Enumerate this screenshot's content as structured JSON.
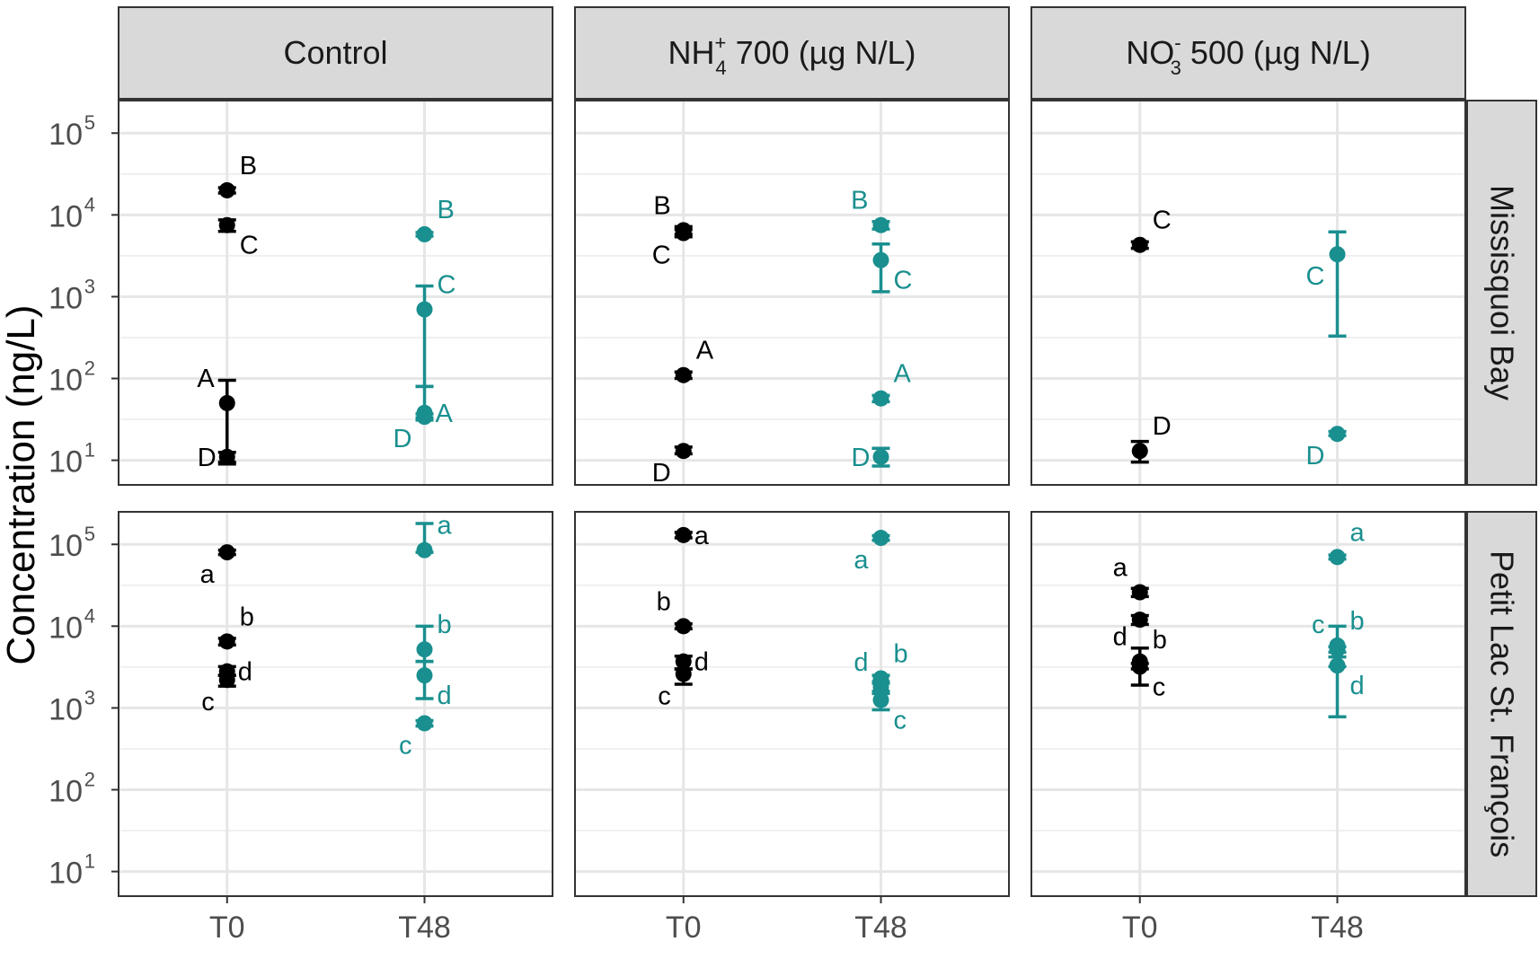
{
  "chart_data": {
    "type": "scatter",
    "title": "",
    "ylabel": "Concentration (ng/L)",
    "xlabel": "",
    "y_scale": "log10",
    "ylim": [
      5,
      250000
    ],
    "y_ticks": [
      {
        "value": 10,
        "base": "10",
        "exp": "1"
      },
      {
        "value": 100,
        "base": "10",
        "exp": "2"
      },
      {
        "value": 1000,
        "base": "10",
        "exp": "3"
      },
      {
        "value": 10000,
        "base": "10",
        "exp": "4"
      },
      {
        "value": 100000,
        "base": "10",
        "exp": "5"
      }
    ],
    "x_categories": [
      "T0",
      "T48"
    ],
    "colors": {
      "T0": "#000000",
      "T48": "#1a8f8f"
    },
    "columns": [
      {
        "id": "control",
        "label": "Control"
      },
      {
        "id": "nh4",
        "label_main": "NH",
        "label_sub": "4",
        "label_sup": "+",
        "label_rest": " 700 (µg N/L)"
      },
      {
        "id": "no3",
        "label_main": "NO",
        "label_sub": "3",
        "label_sup": "-",
        "label_rest": " 500 (µg N/L)"
      }
    ],
    "rows": [
      {
        "id": "missisquoi",
        "label": "Missisquoi Bay"
      },
      {
        "id": "petit",
        "label": "Petit Lac St. François"
      }
    ],
    "panels": [
      {
        "row": "missisquoi",
        "col": "control",
        "points": [
          {
            "x": "T0",
            "label": "B",
            "value": 20000,
            "lo": 18500,
            "hi": 21500,
            "label_side": "right-up"
          },
          {
            "x": "T0",
            "label": "C",
            "value": 7500,
            "lo": 6300,
            "hi": 8700,
            "label_side": "right-down"
          },
          {
            "x": "T0",
            "label": "A",
            "value": 50,
            "lo": 9,
            "hi": 95,
            "label_side": "left-up"
          },
          {
            "x": "T0",
            "label": "D",
            "value": 11,
            "lo": 9.5,
            "hi": 12.5,
            "label_side": "left"
          },
          {
            "x": "T48",
            "label": "B",
            "value": 5800,
            "lo": 5500,
            "hi": 6100,
            "label_side": "right-up"
          },
          {
            "x": "T48",
            "label": "C",
            "value": 700,
            "lo": 80,
            "hi": 1350,
            "label_side": "right-up"
          },
          {
            "x": "T48",
            "label": "A",
            "value": 38,
            "lo": 33,
            "hi": 80,
            "label_side": "right"
          },
          {
            "x": "T48",
            "label": "D",
            "value": 34,
            "lo": 31,
            "hi": 37,
            "label_side": "left-down"
          }
        ]
      },
      {
        "row": "missisquoi",
        "col": "nh4",
        "points": [
          {
            "x": "T0",
            "label": "B",
            "value": 6500,
            "lo": 5800,
            "hi": 7200,
            "label_side": "left-up"
          },
          {
            "x": "T0",
            "label": "C",
            "value": 6000,
            "lo": 5400,
            "hi": 6600,
            "label_side": "left-down"
          },
          {
            "x": "T0",
            "label": "A",
            "value": 110,
            "lo": 100,
            "hi": 120,
            "label_side": "right-up"
          },
          {
            "x": "T0",
            "label": "D",
            "value": 13,
            "lo": 12,
            "hi": 14.5,
            "label_side": "left-down"
          },
          {
            "x": "T48",
            "label": "B",
            "value": 7500,
            "lo": 6700,
            "hi": 8300,
            "label_side": "left-up"
          },
          {
            "x": "T48",
            "label": "C",
            "value": 2800,
            "lo": 1150,
            "hi": 4400,
            "label_side": "right-down"
          },
          {
            "x": "T48",
            "label": "A",
            "value": 57,
            "lo": 52,
            "hi": 62,
            "label_side": "right-up"
          },
          {
            "x": "T48",
            "label": "D",
            "value": 11,
            "lo": 8.5,
            "hi": 14,
            "label_side": "left"
          }
        ]
      },
      {
        "row": "missisquoi",
        "col": "no3",
        "points": [
          {
            "x": "T0",
            "label": "C",
            "value": 4300,
            "lo": 3900,
            "hi": 4700,
            "label_side": "right-up"
          },
          {
            "x": "T0",
            "label": "D",
            "value": 13,
            "lo": 9.5,
            "hi": 17,
            "label_side": "right-up"
          },
          {
            "x": "T48",
            "label": "C",
            "value": 3300,
            "lo": 330,
            "hi": 6200,
            "label_side": "left-down"
          },
          {
            "x": "T48",
            "label": "D",
            "value": 21,
            "lo": 20,
            "hi": 22.5,
            "label_side": "left-down"
          }
        ]
      },
      {
        "row": "petit",
        "col": "control",
        "points": [
          {
            "x": "T0",
            "label": "a",
            "value": 80000,
            "lo": 75000,
            "hi": 85000,
            "label_side": "left-down"
          },
          {
            "x": "T0",
            "label": "b",
            "value": 6500,
            "lo": 5900,
            "hi": 7100,
            "label_side": "right-up"
          },
          {
            "x": "T0",
            "label": "d",
            "value": 2800,
            "lo": 2500,
            "hi": 3200,
            "label_side": "right"
          },
          {
            "x": "T0",
            "label": "c",
            "value": 2200,
            "lo": 1850,
            "hi": 2500,
            "label_side": "left-down"
          },
          {
            "x": "T48",
            "label": "a",
            "value": 85000,
            "lo": 80000,
            "hi": 180000,
            "label_side": "right-up"
          },
          {
            "x": "T48",
            "label": "b",
            "value": 5200,
            "lo": 3700,
            "hi": 10000,
            "label_side": "right-up"
          },
          {
            "x": "T48",
            "label": "d",
            "value": 2500,
            "lo": 1300,
            "hi": 3700,
            "label_side": "right-down"
          },
          {
            "x": "T48",
            "label": "c",
            "value": 650,
            "lo": 600,
            "hi": 700,
            "label_side": "left-down"
          }
        ]
      },
      {
        "row": "petit",
        "col": "nh4",
        "points": [
          {
            "x": "T0",
            "label": "a",
            "value": 130000,
            "lo": 120000,
            "hi": 140000,
            "label_side": "right"
          },
          {
            "x": "T0",
            "label": "b",
            "value": 10000,
            "lo": 9300,
            "hi": 10700,
            "label_side": "left-up"
          },
          {
            "x": "T0",
            "label": "d",
            "value": 3700,
            "lo": 3000,
            "hi": 4300,
            "label_side": "right"
          },
          {
            "x": "T0",
            "label": "c",
            "value": 2600,
            "lo": 1950,
            "hi": 3000,
            "label_side": "left-down"
          },
          {
            "x": "T48",
            "label": "a",
            "value": 120000,
            "lo": 112000,
            "hi": 128000,
            "label_side": "left-down"
          },
          {
            "x": "T48",
            "label": "b",
            "value": 2300,
            "lo": 2100,
            "hi": 2500,
            "label_side": "right-up"
          },
          {
            "x": "T48",
            "label": "d",
            "value": 1800,
            "lo": 1600,
            "hi": 2000,
            "label_side": "left-up"
          },
          {
            "x": "T48",
            "label": "c",
            "value": 1250,
            "lo": 950,
            "hi": 1500,
            "label_side": "right-down"
          }
        ]
      },
      {
        "row": "petit",
        "col": "no3",
        "points": [
          {
            "x": "T0",
            "label": "a",
            "value": 26000,
            "lo": 23000,
            "hi": 29000,
            "label_side": "left-up"
          },
          {
            "x": "T0",
            "label": "b",
            "value": 12000,
            "lo": 10500,
            "hi": 13500,
            "label_side": "right-down"
          },
          {
            "x": "T0",
            "label": "d",
            "value": 3700,
            "lo": 3000,
            "hi": 5400,
            "label_side": "left-up"
          },
          {
            "x": "T0",
            "label": "c",
            "value": 3200,
            "lo": 1900,
            "hi": 3500,
            "label_side": "right-down"
          },
          {
            "x": "T48",
            "label": "a",
            "value": 70000,
            "lo": 66000,
            "hi": 74000,
            "label_side": "right-up"
          },
          {
            "x": "T48",
            "label": "b",
            "value": 5800,
            "lo": 3200,
            "hi": 10000,
            "label_side": "right-up"
          },
          {
            "x": "T48",
            "label": "c",
            "value": 5200,
            "lo": 4800,
            "hi": 5600,
            "label_side": "left-up"
          },
          {
            "x": "T48",
            "label": "d",
            "value": 3300,
            "lo": 780,
            "hi": 4200,
            "label_side": "right-down"
          }
        ]
      }
    ]
  }
}
